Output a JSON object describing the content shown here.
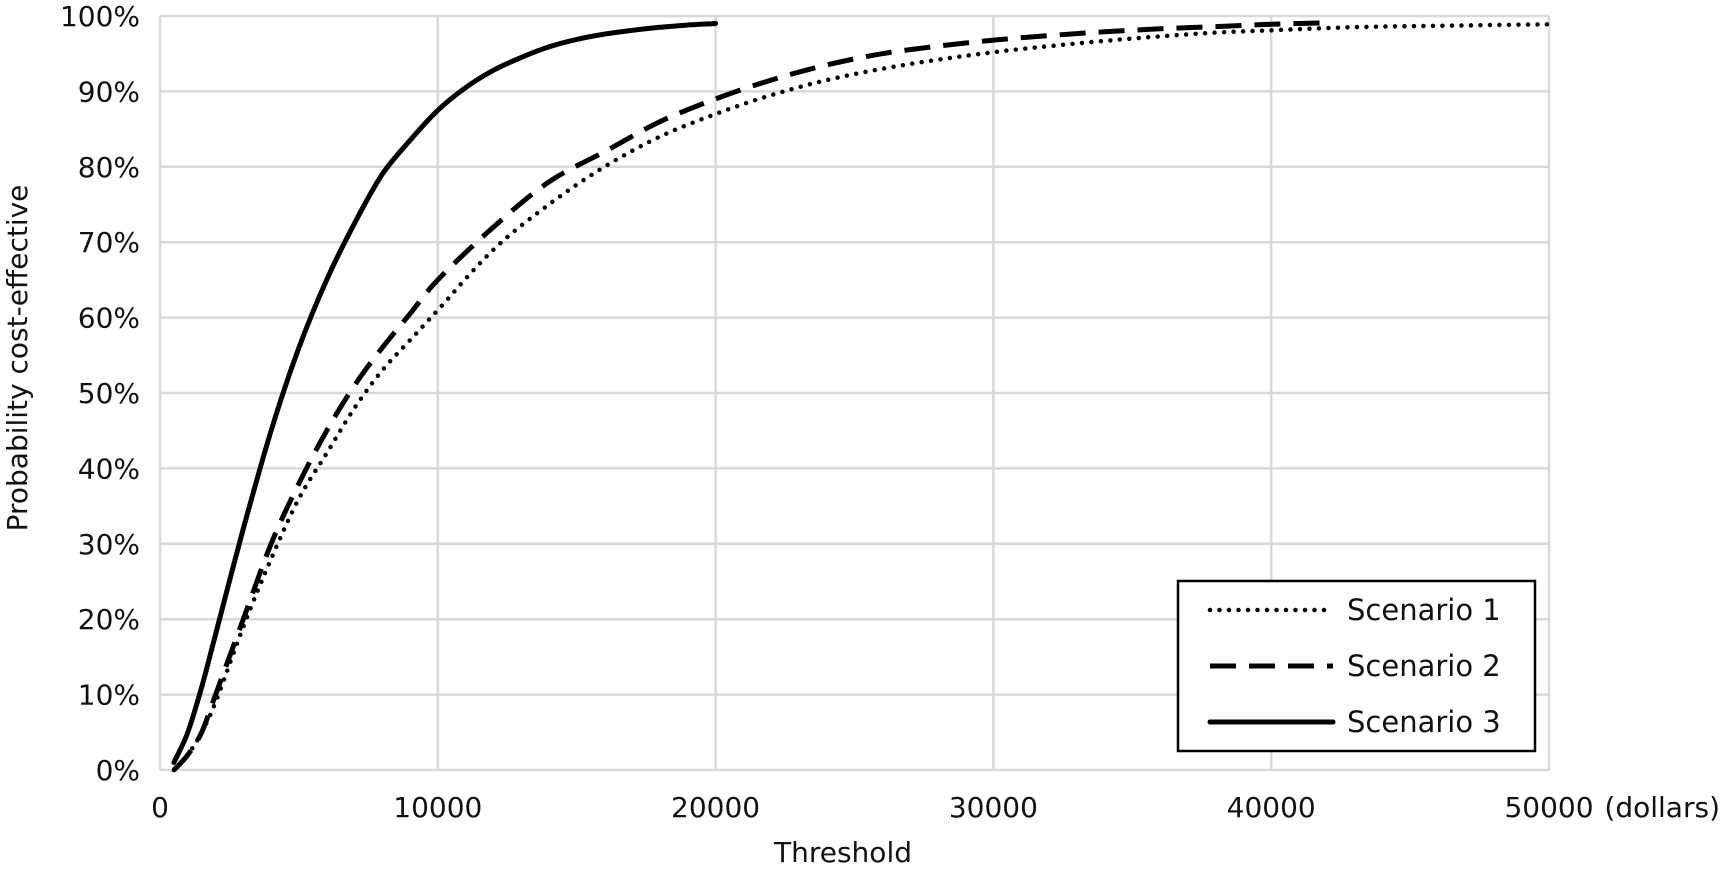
{
  "chart_data": {
    "type": "line",
    "xlabel": "Threshold",
    "x_unit_label": "(dollars)",
    "ylabel": "Probability cost-effective",
    "xlim": [
      0,
      50000
    ],
    "ylim": [
      0,
      100
    ],
    "x_ticks": [
      0,
      10000,
      20000,
      30000,
      40000,
      50000
    ],
    "x_tick_labels": [
      "0",
      "10000",
      "20000",
      "30000",
      "40000",
      "50000"
    ],
    "y_ticks": [
      0,
      10,
      20,
      30,
      40,
      50,
      60,
      70,
      80,
      90,
      100
    ],
    "y_tick_labels": [
      "0%",
      "10%",
      "20%",
      "30%",
      "40%",
      "50%",
      "60%",
      "70%",
      "80%",
      "90%",
      "100%"
    ],
    "grid": true,
    "legend_position": "bottom-right",
    "series": [
      {
        "name": "Scenario 1",
        "style": "dotted",
        "x": [
          500,
          1000,
          1500,
          2000,
          3000,
          4000,
          5000,
          6000,
          7000,
          8000,
          9000,
          10000,
          12000,
          14000,
          16000,
          18000,
          20000,
          22000,
          24000,
          26000,
          28000,
          30000,
          32000,
          34000,
          36000,
          38000,
          40000,
          42000,
          44000,
          46000,
          48000,
          50000
        ],
        "y": [
          0,
          2,
          5,
          9,
          19,
          28,
          36,
          42,
          48,
          53,
          57,
          61,
          69,
          75,
          80,
          84,
          87,
          89.5,
          91.5,
          93,
          94.2,
          95.2,
          96,
          96.7,
          97.3,
          97.8,
          98.1,
          98.4,
          98.6,
          98.7,
          98.8,
          98.9
        ]
      },
      {
        "name": "Scenario 2",
        "style": "dashed",
        "x": [
          500,
          1000,
          1500,
          2000,
          3000,
          4000,
          5000,
          6000,
          7000,
          8000,
          9000,
          10000,
          12000,
          14000,
          16000,
          18000,
          20000,
          22000,
          24000,
          26000,
          28000,
          30000,
          32000,
          34000,
          36000,
          38000,
          40000,
          42000
        ],
        "y": [
          0,
          2,
          5,
          10,
          20,
          30,
          38,
          45,
          51,
          56,
          60.5,
          65,
          72,
          78,
          82,
          86,
          89,
          91.5,
          93.5,
          95,
          96,
          96.8,
          97.4,
          97.9,
          98.3,
          98.6,
          98.9,
          99.1
        ]
      },
      {
        "name": "Scenario 3",
        "style": "solid",
        "x": [
          500,
          1000,
          1500,
          2000,
          3000,
          4000,
          5000,
          6000,
          7000,
          8000,
          9000,
          10000,
          11000,
          12000,
          13000,
          14000,
          15000,
          16000,
          17000,
          18000,
          19000,
          20000
        ],
        "y": [
          1,
          5,
          11,
          18,
          32,
          45,
          56,
          65,
          72.5,
          79,
          83.5,
          87.5,
          90.5,
          92.8,
          94.5,
          95.9,
          96.9,
          97.6,
          98.1,
          98.5,
          98.8,
          99
        ]
      }
    ]
  }
}
